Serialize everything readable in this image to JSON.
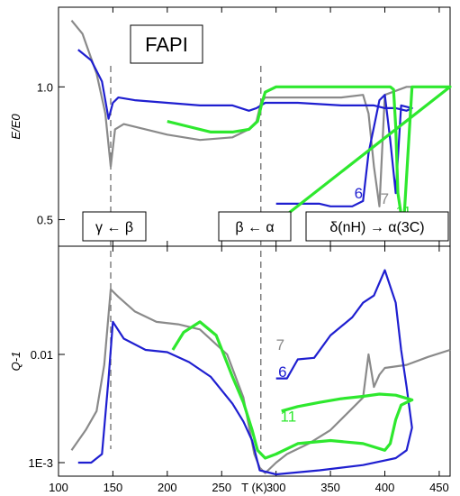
{
  "chart_data": [
    {
      "type": "line",
      "panel": "top",
      "title": "FAPI",
      "ylabel": "E/E0",
      "xlabel": "",
      "xlim": [
        100,
        460
      ],
      "ylim": [
        0.4,
        1.3
      ],
      "yticks": [
        0.5,
        1.0
      ],
      "ytick_labels": [
        "0.5",
        "1.0"
      ],
      "grid": false,
      "phase_labels": [
        "γ ← β",
        "β ← α",
        "δ(nH) → α(3C)"
      ],
      "transition_markers_x": [
        148,
        286
      ],
      "annotations": [
        {
          "text": "6",
          "color": "#1f1fd0",
          "x": 372,
          "y": 0.58
        },
        {
          "text": "7",
          "color": "#8a8a8a",
          "x": 396,
          "y": 0.56
        },
        {
          "text": "11",
          "color": "#2ee82e",
          "x": 410,
          "y": 0.51
        }
      ],
      "series": [
        {
          "id": "run-7",
          "color": "#8a8a8a",
          "x": [
            112,
            122,
            135,
            143,
            148,
            152,
            160,
            180,
            200,
            230,
            260,
            275,
            282,
            286,
            290,
            300,
            330,
            360,
            380,
            385,
            390,
            395,
            400,
            420,
            440,
            460
          ],
          "y": [
            1.25,
            1.2,
            1.05,
            0.9,
            0.7,
            0.84,
            0.86,
            0.84,
            0.82,
            0.8,
            0.81,
            0.84,
            0.87,
            0.94,
            0.96,
            0.96,
            0.96,
            0.96,
            0.97,
            0.9,
            0.7,
            0.55,
            0.97,
            1.0,
            1.0,
            1.0
          ]
        },
        {
          "id": "run-6",
          "color": "#1f1fd0",
          "x": [
            118,
            130,
            140,
            146,
            150,
            155,
            170,
            200,
            230,
            260,
            275,
            282,
            290,
            320,
            360,
            390,
            400,
            410,
            420,
            425,
            415,
            410,
            405,
            400,
            395,
            385,
            380,
            370,
            350,
            340,
            300
          ],
          "y": [
            1.14,
            1.1,
            1.02,
            0.88,
            0.94,
            0.96,
            0.95,
            0.94,
            0.93,
            0.93,
            0.91,
            0.92,
            0.94,
            0.94,
            0.93,
            0.93,
            0.92,
            0.92,
            0.91,
            0.92,
            0.93,
            0.6,
            0.8,
            0.97,
            0.95,
            0.75,
            0.57,
            0.55,
            0.55,
            0.56,
            0.56
          ]
        },
        {
          "id": "run-11",
          "color": "#2ee82e",
          "x": [
            200,
            220,
            240,
            260,
            275,
            283,
            287,
            290,
            300,
            330,
            360,
            390,
            395,
            400,
            405,
            408,
            410,
            412,
            415,
            418,
            425,
            440,
            460,
            310,
            300
          ],
          "y": [
            0.87,
            0.85,
            0.83,
            0.83,
            0.84,
            0.87,
            0.94,
            0.98,
            1.0,
            1.0,
            1.0,
            1.0,
            1.0,
            1.0,
            1.0,
            0.99,
            0.85,
            0.6,
            0.52,
            0.53,
            1.0,
            1.0,
            1.0,
            0.52,
            0.52
          ]
        }
      ]
    },
    {
      "type": "line",
      "panel": "bottom",
      "ylabel": "Q-1",
      "xlabel": "T (K)",
      "xlim": [
        100,
        460
      ],
      "ylim": [
        0.00075,
        0.1
      ],
      "yscale": "log",
      "yticks": [
        0.001,
        0.01
      ],
      "ytick_labels": [
        "1E-3",
        "0.01"
      ],
      "xticks": [
        100,
        150,
        200,
        250,
        300,
        350,
        400,
        450
      ],
      "xtick_labels": [
        "100",
        "150",
        "200",
        "250",
        "300",
        "350",
        "400",
        "450"
      ],
      "grid": false,
      "transition_markers_x": [
        148,
        286
      ],
      "annotations": [
        {
          "text": "7",
          "color": "#8a8a8a",
          "x": 300,
          "y": 0.011
        },
        {
          "text": "6",
          "color": "#1f1fd0",
          "x": 302,
          "y": 0.0062
        },
        {
          "text": "11",
          "color": "#2ee82e",
          "x": 304,
          "y": 0.0024
        }
      ],
      "series": [
        {
          "id": "run-7",
          "color": "#8a8a8a",
          "x": [
            112,
            125,
            135,
            142,
            148,
            155,
            170,
            190,
            210,
            230,
            255,
            270,
            280,
            285,
            290,
            300,
            310,
            330,
            350,
            380,
            385,
            390,
            395,
            400,
            420,
            440,
            460
          ],
          "y": [
            0.0013,
            0.002,
            0.003,
            0.008,
            0.04,
            0.034,
            0.025,
            0.02,
            0.019,
            0.017,
            0.01,
            0.004,
            0.0012,
            0.0009,
            0.0008,
            0.001,
            0.0012,
            0.0015,
            0.002,
            0.004,
            0.01,
            0.005,
            0.0065,
            0.0075,
            0.008,
            0.0095,
            0.011
          ]
        },
        {
          "id": "run-6",
          "color": "#1f1fd0",
          "x": [
            118,
            130,
            140,
            146,
            150,
            160,
            180,
            200,
            220,
            240,
            260,
            270,
            278,
            285,
            300,
            340,
            380,
            410,
            420,
            425,
            420,
            415,
            410,
            400,
            390,
            380,
            370,
            350,
            335,
            320,
            310,
            300
          ],
          "y": [
            0.001,
            0.001,
            0.0012,
            0.006,
            0.02,
            0.014,
            0.011,
            0.0105,
            0.0085,
            0.0062,
            0.0035,
            0.0024,
            0.0016,
            0.00085,
            0.00078,
            0.00085,
            0.00095,
            0.0011,
            0.0013,
            0.0021,
            0.005,
            0.011,
            0.03,
            0.06,
            0.035,
            0.03,
            0.022,
            0.015,
            0.0093,
            0.009,
            0.006,
            0.006
          ]
        },
        {
          "id": "run-11",
          "color": "#2ee82e",
          "x": [
            205,
            215,
            230,
            245,
            260,
            270,
            278,
            283,
            290,
            300,
            320,
            350,
            380,
            400,
            405,
            410,
            415,
            420,
            425,
            410,
            395,
            380,
            360,
            340,
            320,
            305
          ],
          "y": [
            0.011,
            0.016,
            0.02,
            0.015,
            0.0062,
            0.0036,
            0.002,
            0.0013,
            0.0011,
            0.0012,
            0.0015,
            0.0016,
            0.0015,
            0.0013,
            0.0015,
            0.0025,
            0.0034,
            0.0036,
            0.0038,
            0.0042,
            0.0043,
            0.0041,
            0.0039,
            0.0036,
            0.0033,
            0.003
          ]
        }
      ]
    }
  ]
}
